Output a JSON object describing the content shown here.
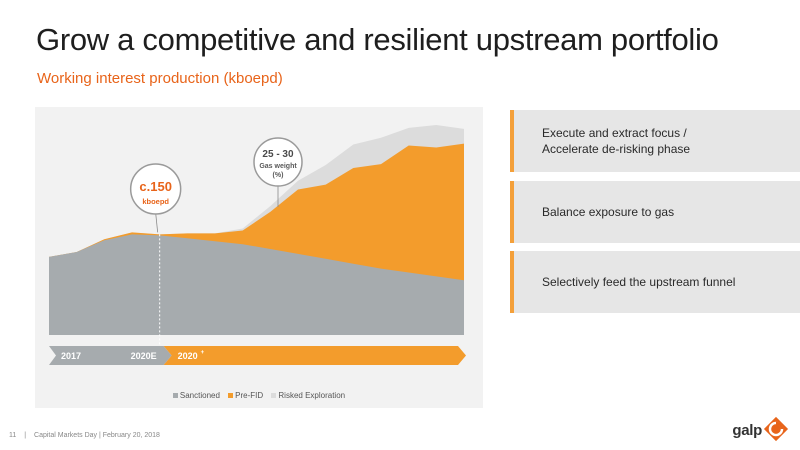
{
  "slide": {
    "title": "Grow a competitive and resilient upstream portfolio",
    "subtitle": "Working interest production (kboepd)"
  },
  "chart_data": {
    "type": "area",
    "title": "Working interest production (kboepd)",
    "xlabel": "",
    "ylabel": "",
    "x": [
      0,
      1,
      2,
      3,
      4,
      5,
      6,
      7,
      8,
      9,
      10,
      11,
      12,
      13,
      14,
      15
    ],
    "series": [
      {
        "name": "Sanctioned",
        "color": "#a6abae",
        "values": [
          80,
          85,
          97,
          103,
          102,
          99,
          96,
          93,
          88,
          83,
          78,
          73,
          68,
          64,
          60,
          56
        ]
      },
      {
        "name": "Pre-FID",
        "color": "#f39c2c",
        "values": [
          0,
          0,
          1,
          2,
          1,
          5,
          8,
          14,
          38,
          66,
          76,
          98,
          107,
          130,
          132,
          140
        ]
      },
      {
        "name": "Risked Exploration",
        "color": "#dcdcdc",
        "values": [
          0,
          0,
          0,
          0,
          0,
          0,
          0,
          2,
          6,
          9,
          20,
          24,
          27,
          18,
          23,
          15
        ]
      }
    ],
    "ylim": [
      0,
      215
    ],
    "legend_position": "bottom",
    "grid": false,
    "stacked": true,
    "annotations": [
      {
        "value": "c.150",
        "label": "kboepd"
      },
      {
        "range": "25 - 30",
        "label_line1": "Gas weight",
        "label_line2": "(%)"
      }
    ],
    "timeline": [
      {
        "label": "2017"
      },
      {
        "label": "2020E"
      },
      {
        "label": "2020",
        "superscript": "+"
      }
    ],
    "timeline_colors": {
      "past": "#a6abae",
      "future": "#f39c2c"
    }
  },
  "bullets": [
    {
      "line1": "Execute and extract focus /",
      "line2": "Accelerate de-risking phase"
    },
    {
      "line1": "Balance exposure to gas",
      "line2": ""
    },
    {
      "line1": "Selectively feed the upstream funnel",
      "line2": ""
    }
  ],
  "footer": {
    "page_number": "11",
    "separator": "|",
    "event": "Capital Markets Day | February 20, 2018"
  },
  "logo": {
    "text": "galp"
  },
  "colors": {
    "accent": "#e8641a",
    "orange": "#f39c2c",
    "gray": "#a6abae",
    "light": "#dcdcdc"
  }
}
